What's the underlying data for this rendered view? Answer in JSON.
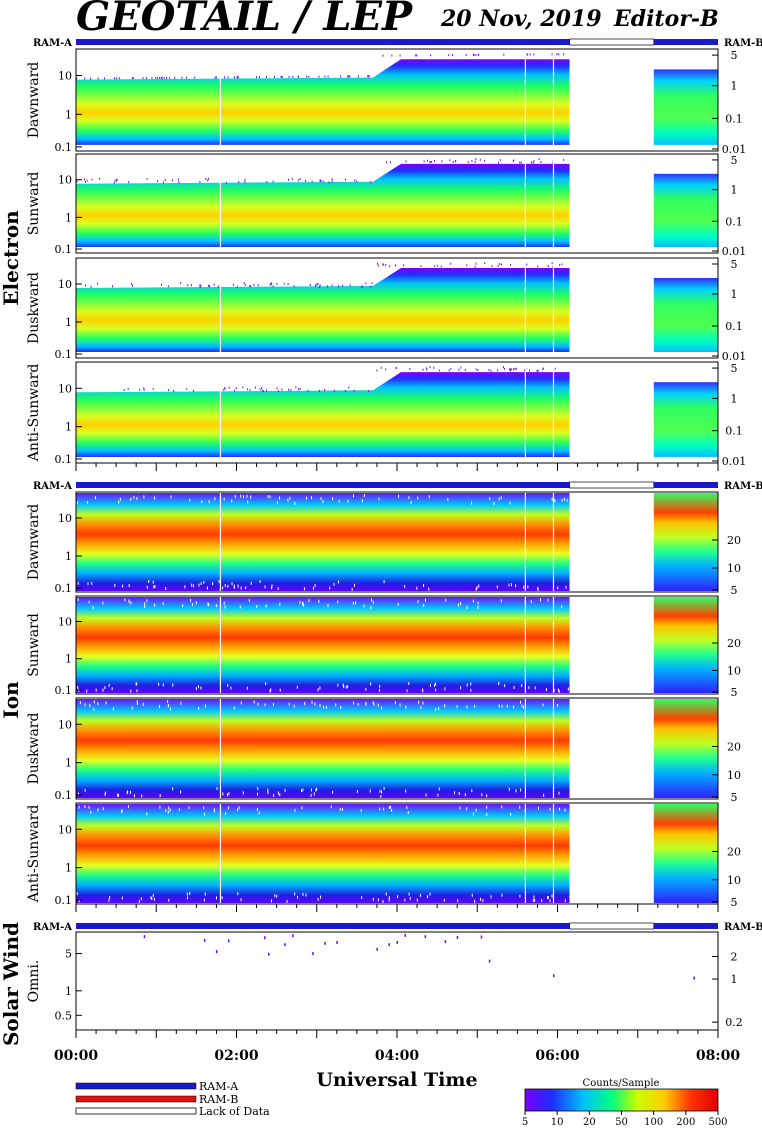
{
  "header": {
    "title": "GEOTAIL / LEP",
    "date": "20 Nov, 2019",
    "editor": "Editor-B"
  },
  "chart_data": {
    "type": "heatmap",
    "x_axis": {
      "label": "Universal Time",
      "range": [
        "00:00",
        "08:00"
      ],
      "ticks": [
        "00:00",
        "02:00",
        "04:00",
        "06:00",
        "08:00"
      ]
    },
    "ram_labels": {
      "left": "RAM-A",
      "right": "RAM-B"
    },
    "ram_bar": {
      "ram_a_until_hour": 6.15,
      "gap_hours": [
        6.15,
        7.2
      ],
      "ram_b_from_hour": 7.2,
      "colors": {
        "ram_a": "#1a1acc",
        "ram_b": "#dd1111",
        "lack": "#ffffff"
      }
    },
    "data_gaps_hours": [
      [
        6.15,
        7.2
      ]
    ],
    "sections": [
      {
        "name": "Electron",
        "panels": [
          {
            "label": "Dawnward",
            "left_ticks": [
              "10",
              "1",
              "0.1"
            ],
            "right_ticks": [
              "5",
              "1",
              "0.1",
              "0.01"
            ]
          },
          {
            "label": "Sunward",
            "left_ticks": [
              "10",
              "1",
              "0.1"
            ],
            "right_ticks": [
              "5",
              "1",
              "0.1",
              "0.01"
            ]
          },
          {
            "label": "Duskward",
            "left_ticks": [
              "10",
              "1",
              "0.1"
            ],
            "right_ticks": [
              "5",
              "1",
              "0.1",
              "0.01"
            ]
          },
          {
            "label": "Anti-Sunward",
            "left_ticks": [
              "10",
              "1",
              "0.1"
            ],
            "right_ticks": [
              "5",
              "1",
              "0.1",
              "0.01"
            ]
          }
        ]
      },
      {
        "name": "Ion",
        "panels": [
          {
            "label": "Dawnward",
            "left_ticks": [
              "10",
              "1",
              "0.1"
            ],
            "right_ticks": [
              "20",
              "10",
              "5"
            ]
          },
          {
            "label": "Sunward",
            "left_ticks": [
              "10",
              "1",
              "0.1"
            ],
            "right_ticks": [
              "20",
              "10",
              "5"
            ]
          },
          {
            "label": "Duskward",
            "left_ticks": [
              "10",
              "1",
              "0.1"
            ],
            "right_ticks": [
              "20",
              "10",
              "5"
            ]
          },
          {
            "label": "Anti-Sunward",
            "left_ticks": [
              "10",
              "1",
              "0.1"
            ],
            "right_ticks": [
              "20",
              "10",
              "5"
            ]
          }
        ]
      },
      {
        "name": "Solar Wind",
        "panels": [
          {
            "label": "Omni.",
            "left_ticks": [
              "5",
              "1",
              "0.5"
            ],
            "right_ticks": [
              "2",
              "1",
              "0.2"
            ]
          }
        ]
      }
    ],
    "solar_wind_points": [
      {
        "hour": 0.85,
        "value": 7.5
      },
      {
        "hour": 1.6,
        "value": 6.5
      },
      {
        "hour": 1.75,
        "value": 4.2
      },
      {
        "hour": 1.9,
        "value": 6.4
      },
      {
        "hour": 2.35,
        "value": 7.2
      },
      {
        "hour": 2.4,
        "value": 3.8
      },
      {
        "hour": 2.6,
        "value": 5.5
      },
      {
        "hour": 2.7,
        "value": 7.8
      },
      {
        "hour": 2.95,
        "value": 3.9
      },
      {
        "hour": 3.1,
        "value": 5.8
      },
      {
        "hour": 3.25,
        "value": 6.0
      },
      {
        "hour": 3.75,
        "value": 4.6
      },
      {
        "hour": 3.9,
        "value": 5.5
      },
      {
        "hour": 4.0,
        "value": 6.0
      },
      {
        "hour": 4.1,
        "value": 7.9
      },
      {
        "hour": 4.35,
        "value": 7.5
      },
      {
        "hour": 4.6,
        "value": 6.2
      },
      {
        "hour": 4.75,
        "value": 7.3
      },
      {
        "hour": 5.05,
        "value": 7.4
      },
      {
        "hour": 5.15,
        "value": 2.9
      },
      {
        "hour": 5.95,
        "value": 1.65
      },
      {
        "hour": 7.7,
        "value": 1.5
      }
    ],
    "colorbar": {
      "title": "Counts/Sample",
      "ticks": [
        "5",
        "10",
        "20",
        "50",
        "100",
        "200",
        "500"
      ],
      "colors": [
        "#7a00ff",
        "#1e2cff",
        "#00bfff",
        "#00ff80",
        "#c8ff00",
        "#ffcc00",
        "#ff3300",
        "#e00000"
      ]
    },
    "legend": [
      {
        "label": "RAM-A",
        "color": "#1a1acc"
      },
      {
        "label": "RAM-B",
        "color": "#dd1111"
      },
      {
        "label": "Lack of Data",
        "color": "#ffffff"
      }
    ]
  }
}
